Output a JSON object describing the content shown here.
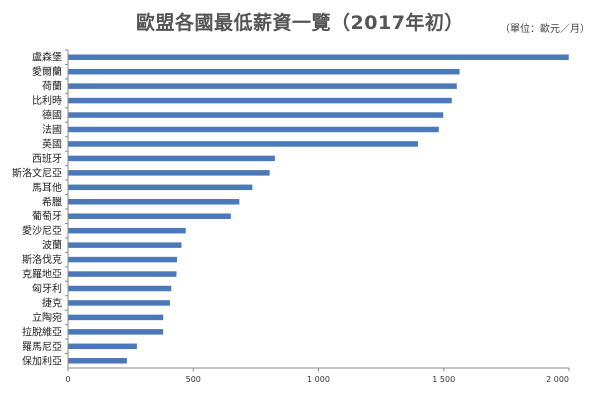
{
  "chart_data": {
    "type": "bar",
    "orientation": "horizontal",
    "title": "歐盟各國最低薪資一覽（2017年初）",
    "unit_note": "（單位：歐元／月）",
    "categories": [
      "盧森堡",
      "愛爾蘭",
      "荷蘭",
      "比利時",
      "德國",
      "法國",
      "英國",
      "西班牙",
      "斯洛文尼亞",
      "馬耳他",
      "希臘",
      "葡萄牙",
      "愛沙尼亞",
      "波蘭",
      "斯洛伐克",
      "克羅地亞",
      "匈牙利",
      "捷克",
      "立陶宛",
      "拉脫維亞",
      "羅馬尼亞",
      "保加利亞"
    ],
    "values": [
      1999,
      1563,
      1552,
      1532,
      1498,
      1480,
      1397,
      826,
      805,
      736,
      684,
      650,
      470,
      453,
      435,
      433,
      412,
      407,
      380,
      380,
      275,
      235
    ],
    "xlim": [
      0,
      2000
    ],
    "xticks": [
      0,
      500,
      1000,
      1500,
      2000
    ],
    "xtick_labels": [
      "0",
      "500",
      "1 000",
      "1 500",
      "2 000"
    ],
    "grid": false,
    "bar_color": "#4a78b8"
  }
}
